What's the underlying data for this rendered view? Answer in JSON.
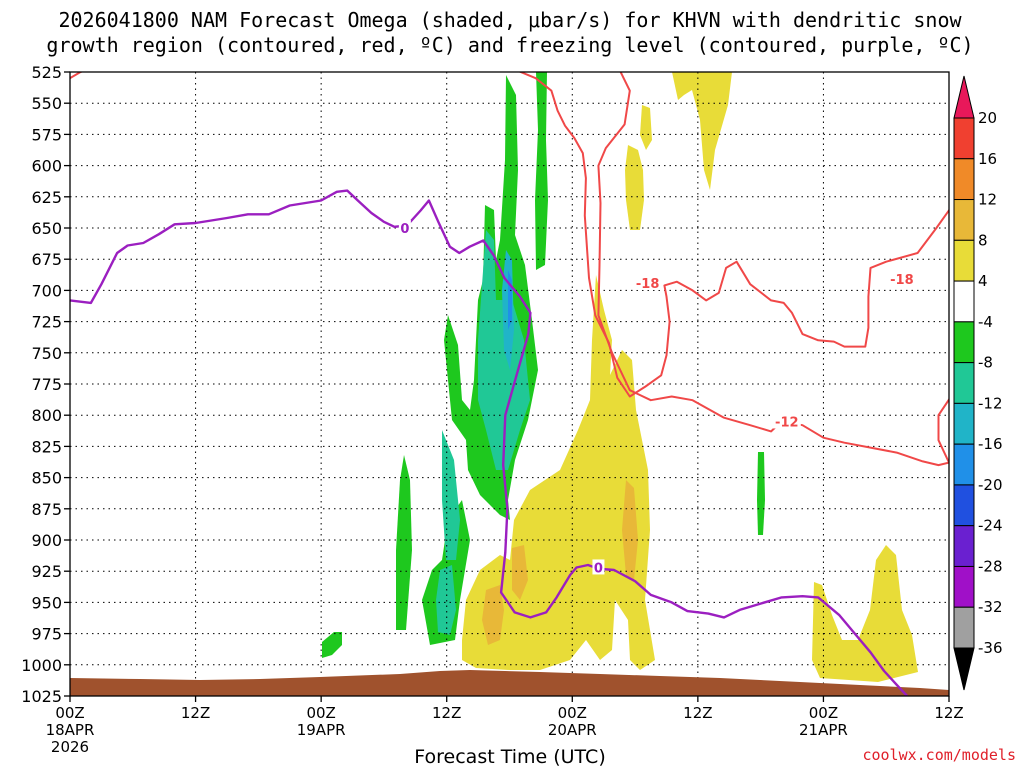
{
  "chart_data": {
    "type": "heatmap",
    "title": "2026041800 NAM Forecast Omega (shaded, μbar/s) for KHVN with dendritic snow growth region (contoured, red, ºC) and freezing level (contoured, purple, ºC)",
    "title_lines": [
      "2026041800 NAM Forecast Omega (shaded, μbar/s) for KHVN with dendritic snow",
      "growth region (contoured, red, ºC) and freezing level (contoured, purple, ºC)"
    ],
    "xlabel": "Forecast Time (UTC)",
    "ylabel": "",
    "credit": "coolwx.com/models",
    "x_range_hours": [
      0,
      84
    ],
    "y_range_hPa": [
      525,
      1025
    ],
    "y_ticks": [
      525,
      550,
      575,
      600,
      625,
      650,
      675,
      700,
      725,
      750,
      775,
      800,
      825,
      850,
      875,
      900,
      925,
      950,
      975,
      1000,
      1025
    ],
    "x_ticks": [
      {
        "hour": 0,
        "lines": [
          "00Z",
          "18APR",
          "2026"
        ]
      },
      {
        "hour": 12,
        "lines": [
          "12Z"
        ]
      },
      {
        "hour": 24,
        "lines": [
          "00Z",
          "19APR"
        ]
      },
      {
        "hour": 36,
        "lines": [
          "12Z"
        ]
      },
      {
        "hour": 48,
        "lines": [
          "00Z",
          "20APR"
        ]
      },
      {
        "hour": 60,
        "lines": [
          "12Z"
        ]
      },
      {
        "hour": 72,
        "lines": [
          "00Z",
          "21APR"
        ]
      },
      {
        "hour": 84,
        "lines": [
          "12Z"
        ]
      }
    ],
    "grid": true,
    "colorbar": {
      "labels": [
        "20",
        "16",
        "12",
        "8",
        "4",
        "-4",
        "-8",
        "-12",
        "-16",
        "-20",
        "-24",
        "-28",
        "-32",
        "-36"
      ],
      "levels": [
        20,
        16,
        12,
        8,
        4,
        -4,
        -8,
        -12,
        -16,
        -20,
        -24,
        -28,
        -32,
        -36
      ],
      "colors": [
        "#e8185a",
        "#f04030",
        "#f08a28",
        "#e8b838",
        "#e8dc38",
        "#ffffff",
        "#1ec81e",
        "#20c896",
        "#20b4c8",
        "#2090e8",
        "#2050e0",
        "#6a20d0",
        "#a010c8",
        "#a0a0a0",
        "#000000"
      ]
    },
    "terrain_color": "#a0522d",
    "freezing_level_color": "#9b1fc0",
    "dgz_color": "#f04848",
    "contour_labels": [
      {
        "text": "0",
        "hour": 32.0,
        "p": 650
      },
      {
        "text": "0",
        "hour": 50.5,
        "p": 922
      },
      {
        "text": "-18",
        "hour": 55.2,
        "p": 694
      },
      {
        "text": "-18",
        "hour": 79.5,
        "p": 691
      },
      {
        "text": "-12",
        "hour": 68.5,
        "p": 805
      }
    ],
    "freezing_level": [
      [
        0,
        708
      ],
      [
        2,
        710
      ],
      [
        3,
        695
      ],
      [
        4.5,
        670
      ],
      [
        5.5,
        664
      ],
      [
        7,
        662
      ],
      [
        8.5,
        655
      ],
      [
        10,
        647
      ],
      [
        12,
        646
      ],
      [
        15,
        642
      ],
      [
        17,
        639
      ],
      [
        19,
        639
      ],
      [
        21,
        632
      ],
      [
        24,
        628
      ],
      [
        25.5,
        621
      ],
      [
        26.5,
        620
      ],
      [
        27.5,
        628
      ],
      [
        28.8,
        638
      ],
      [
        30,
        645
      ],
      [
        31,
        649
      ],
      [
        32.2,
        648
      ],
      [
        33.5,
        636
      ],
      [
        34.3,
        628
      ],
      [
        35.2,
        645
      ],
      [
        36.3,
        665
      ],
      [
        37.2,
        670
      ],
      [
        38.2,
        665
      ],
      [
        39.5,
        660
      ],
      [
        40.5,
        672
      ],
      [
        41.5,
        690
      ],
      [
        43,
        705
      ],
      [
        44,
        718
      ],
      [
        43.8,
        735
      ],
      [
        42.6,
        770
      ],
      [
        41.6,
        800
      ],
      [
        41.4,
        840
      ],
      [
        41.8,
        875
      ],
      [
        41.6,
        910
      ],
      [
        41.2,
        942
      ],
      [
        42.5,
        958
      ],
      [
        44,
        962
      ],
      [
        45.5,
        958
      ],
      [
        46.5,
        946
      ],
      [
        47.8,
        928
      ],
      [
        48.4,
        922
      ],
      [
        49.5,
        920
      ],
      [
        50.5,
        923
      ],
      [
        52,
        924
      ],
      [
        54,
        933
      ],
      [
        55.5,
        944
      ],
      [
        57.5,
        950
      ],
      [
        59,
        957
      ],
      [
        61,
        959
      ],
      [
        62.5,
        962
      ],
      [
        64,
        956
      ],
      [
        66,
        951
      ],
      [
        68,
        946
      ],
      [
        70,
        945
      ],
      [
        71.5,
        946
      ],
      [
        73.5,
        960
      ],
      [
        75,
        975
      ],
      [
        76.5,
        990
      ],
      [
        77.8,
        1005
      ],
      [
        79,
        1016
      ],
      [
        80,
        1025
      ]
    ],
    "dgz_contours": [
      {
        "level": -18,
        "points": [
          [
            0,
            530
          ],
          [
            1,
            525
          ],
          [
            2,
            522
          ]
        ]
      },
      {
        "level": -18,
        "points": [
          [
            42.5,
            523
          ],
          [
            44.5,
            530
          ],
          [
            46,
            540
          ],
          [
            46.6,
            556
          ],
          [
            47.3,
            568
          ],
          [
            48.2,
            578
          ],
          [
            49,
            590
          ],
          [
            49.3,
            610
          ],
          [
            49.2,
            640
          ],
          [
            49.6,
            690
          ],
          [
            50.2,
            720
          ],
          [
            51.5,
            742
          ],
          [
            52.3,
            770
          ],
          [
            53.5,
            785
          ],
          [
            55,
            777
          ],
          [
            56.5,
            768
          ],
          [
            57,
            752
          ],
          [
            57.3,
            725
          ],
          [
            57,
            705
          ],
          [
            56.8,
            696
          ],
          [
            58,
            693
          ],
          [
            59.5,
            700
          ],
          [
            60.8,
            708
          ],
          [
            62,
            702
          ],
          [
            62.7,
            682
          ],
          [
            63.7,
            677
          ],
          [
            65,
            695
          ],
          [
            67,
            708
          ],
          [
            68.2,
            710
          ],
          [
            69,
            718
          ],
          [
            70,
            735
          ],
          [
            71.5,
            740
          ],
          [
            73,
            741
          ],
          [
            74,
            745
          ],
          [
            76,
            745
          ],
          [
            76.3,
            730
          ],
          [
            76.3,
            705
          ],
          [
            76.5,
            682
          ],
          [
            78,
            677
          ],
          [
            81,
            670
          ],
          [
            82.8,
            650
          ],
          [
            84.5,
            630
          ],
          [
            84.6,
            560
          ],
          [
            84.7,
            525
          ]
        ]
      },
      {
        "level": -18,
        "points": [
          [
            52.5,
            523
          ],
          [
            53.5,
            540
          ],
          [
            53,
            567
          ],
          [
            51.2,
            586
          ],
          [
            50.5,
            600
          ],
          [
            50.7,
            630
          ],
          [
            50.6,
            680
          ],
          [
            50.5,
            720
          ],
          [
            51.8,
            750
          ],
          [
            53.5,
            780
          ],
          [
            55.5,
            788
          ],
          [
            57.5,
            785
          ],
          [
            59.5,
            788
          ],
          [
            61,
            795
          ],
          [
            62.5,
            802
          ],
          [
            65,
            808
          ],
          [
            67,
            813
          ],
          [
            68,
            805
          ],
          [
            70,
            808
          ],
          [
            72,
            818
          ],
          [
            74,
            822
          ],
          [
            76.5,
            826
          ],
          [
            79,
            830
          ],
          [
            81.5,
            837
          ],
          [
            83,
            840
          ],
          [
            84,
            838
          ],
          [
            83,
            820
          ],
          [
            83,
            800
          ],
          [
            84.6,
            780
          ]
        ]
      }
    ]
  }
}
